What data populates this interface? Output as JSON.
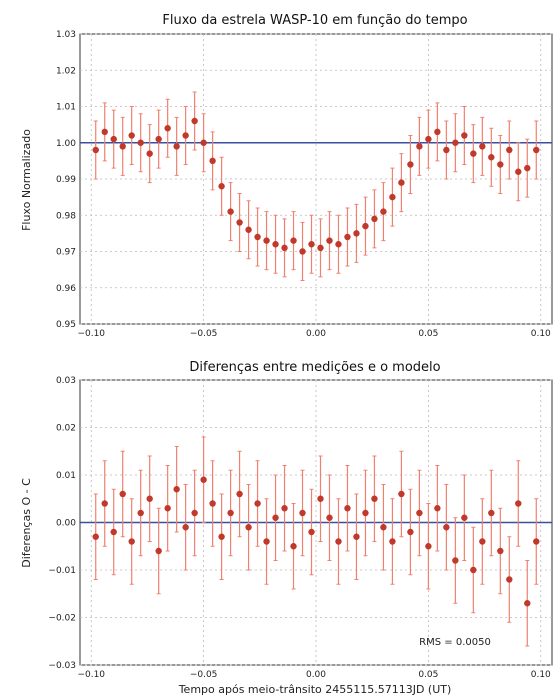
{
  "chart_data": [
    {
      "type": "scatter",
      "title": "Fluxo da estrela WASP-10 em função do tempo",
      "xlabel": "",
      "ylabel": "Fluxo Normalizado",
      "xlim": [
        -0.105,
        0.105
      ],
      "ylim": [
        0.95,
        1.03
      ],
      "xticks": [
        -0.1,
        -0.05,
        0.0,
        0.05,
        0.1
      ],
      "xtick_labels": [
        "−0.10",
        "−0.05",
        "0.00",
        "0.05",
        "0.10"
      ],
      "yticks": [
        0.95,
        0.96,
        0.97,
        0.98,
        0.99,
        1.0,
        1.01,
        1.02,
        1.03
      ],
      "ytick_labels": [
        "0.95",
        "0.96",
        "0.97",
        "0.98",
        "0.99",
        "1.00",
        "1.01",
        "1.02",
        "1.03"
      ],
      "grid": true,
      "reference_line": 1.0,
      "error_bar_half_height": 0.008,
      "x": [
        -0.098,
        -0.094,
        -0.09,
        -0.086,
        -0.082,
        -0.078,
        -0.074,
        -0.07,
        -0.066,
        -0.062,
        -0.058,
        -0.054,
        -0.05,
        -0.046,
        -0.042,
        -0.038,
        -0.034,
        -0.03,
        -0.026,
        -0.022,
        -0.018,
        -0.014,
        -0.01,
        -0.006,
        -0.002,
        0.002,
        0.006,
        0.01,
        0.014,
        0.018,
        0.022,
        0.026,
        0.03,
        0.034,
        0.038,
        0.042,
        0.046,
        0.05,
        0.054,
        0.058,
        0.062,
        0.066,
        0.07,
        0.074,
        0.078,
        0.082,
        0.086,
        0.09,
        0.094,
        0.098
      ],
      "y": [
        0.998,
        1.003,
        1.001,
        0.999,
        1.002,
        1.0,
        0.997,
        1.001,
        1.004,
        0.999,
        1.002,
        1.006,
        1.0,
        0.995,
        0.988,
        0.981,
        0.978,
        0.976,
        0.974,
        0.973,
        0.972,
        0.971,
        0.973,
        0.97,
        0.972,
        0.971,
        0.973,
        0.972,
        0.974,
        0.975,
        0.977,
        0.979,
        0.981,
        0.985,
        0.989,
        0.994,
        0.999,
        1.001,
        1.003,
        0.998,
        1.0,
        1.002,
        0.997,
        0.999,
        0.996,
        0.994,
        0.998,
        0.992,
        0.993,
        0.998
      ],
      "colors": {
        "points": "#c0392b",
        "errorbars": "#f08070",
        "reference": "#3a4fa0"
      }
    },
    {
      "type": "scatter",
      "title": "Diferenças entre medições e o modelo",
      "xlabel": "Tempo após meio-trânsito 2455115.57113JD (UT)",
      "ylabel": "Diferenças O - C",
      "xlim": [
        -0.105,
        0.105
      ],
      "ylim": [
        -0.03,
        0.03
      ],
      "xticks": [
        -0.1,
        -0.05,
        0.0,
        0.05,
        0.1
      ],
      "xtick_labels": [
        "−0.10",
        "−0.05",
        "0.00",
        "0.05",
        "0.10"
      ],
      "yticks": [
        -0.03,
        -0.02,
        -0.01,
        0.0,
        0.01,
        0.02,
        0.03
      ],
      "ytick_labels": [
        "−0.03",
        "−0.02",
        "−0.01",
        "0.00",
        "0.01",
        "0.02",
        "0.03"
      ],
      "grid": true,
      "reference_line": 0.0,
      "error_bar_half_height": 0.009,
      "annotation": "RMS = 0.0050",
      "x": [
        -0.098,
        -0.094,
        -0.09,
        -0.086,
        -0.082,
        -0.078,
        -0.074,
        -0.07,
        -0.066,
        -0.062,
        -0.058,
        -0.054,
        -0.05,
        -0.046,
        -0.042,
        -0.038,
        -0.034,
        -0.03,
        -0.026,
        -0.022,
        -0.018,
        -0.014,
        -0.01,
        -0.006,
        -0.002,
        0.002,
        0.006,
        0.01,
        0.014,
        0.018,
        0.022,
        0.026,
        0.03,
        0.034,
        0.038,
        0.042,
        0.046,
        0.05,
        0.054,
        0.058,
        0.062,
        0.066,
        0.07,
        0.074,
        0.078,
        0.082,
        0.086,
        0.09,
        0.094,
        0.098
      ],
      "y": [
        -0.003,
        0.004,
        -0.002,
        0.006,
        -0.004,
        0.002,
        0.005,
        -0.006,
        0.003,
        0.007,
        -0.001,
        0.002,
        0.009,
        0.004,
        -0.003,
        0.002,
        0.006,
        -0.001,
        0.004,
        -0.004,
        0.001,
        0.003,
        -0.005,
        0.002,
        -0.002,
        0.005,
        0.001,
        -0.004,
        0.003,
        -0.003,
        0.002,
        0.005,
        -0.001,
        -0.004,
        0.006,
        -0.002,
        0.002,
        -0.005,
        0.003,
        -0.001,
        -0.008,
        0.001,
        -0.01,
        -0.004,
        0.002,
        -0.006,
        -0.012,
        0.004,
        -0.017,
        -0.004
      ],
      "colors": {
        "points": "#c0392b",
        "errorbars": "#f08070",
        "reference": "#3a4fa0"
      }
    }
  ]
}
